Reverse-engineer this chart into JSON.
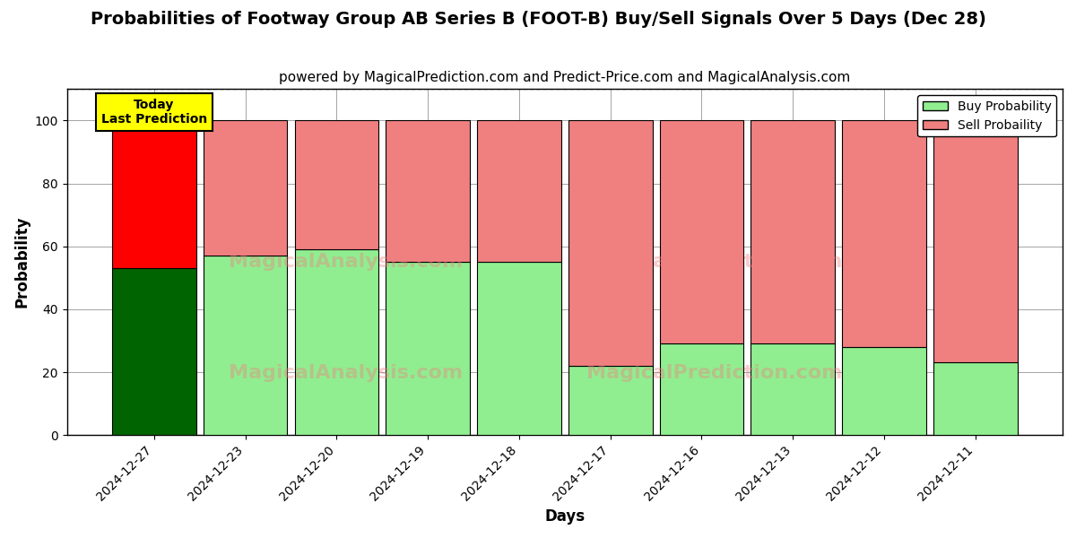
{
  "title": "Probabilities of Footway Group AB Series B (FOOT-B) Buy/Sell Signals Over 5 Days (Dec 28)",
  "subtitle": "powered by MagicalPrediction.com and Predict-Price.com and MagicalAnalysis.com",
  "xlabel": "Days",
  "ylabel": "Probability",
  "dates": [
    "2024-12-27",
    "2024-12-23",
    "2024-12-20",
    "2024-12-19",
    "2024-12-18",
    "2024-12-17",
    "2024-12-16",
    "2024-12-13",
    "2024-12-12",
    "2024-12-11"
  ],
  "buy_values": [
    53,
    57,
    59,
    55,
    55,
    22,
    29,
    29,
    28,
    23
  ],
  "sell_values": [
    47,
    43,
    41,
    45,
    45,
    78,
    71,
    71,
    72,
    77
  ],
  "today_buy_color": "#006400",
  "today_sell_color": "#FF0000",
  "other_buy_color": "#90EE90",
  "other_sell_color": "#F08080",
  "bar_edge_color": "black",
  "ylim": [
    0,
    110
  ],
  "yticks": [
    0,
    20,
    40,
    60,
    80,
    100
  ],
  "dashed_line_y": 110,
  "annotation_text": "Today\nLast Prediction",
  "annotation_bg": "yellow",
  "watermark1": "MagicalAnalysis.com",
  "watermark2": "MagicalPrediction.com",
  "legend_buy_label": "Buy Probability",
  "legend_sell_label": "Sell Probaility",
  "title_fontsize": 14,
  "subtitle_fontsize": 11,
  "axis_label_fontsize": 12,
  "tick_fontsize": 10,
  "bar_width": 0.92
}
